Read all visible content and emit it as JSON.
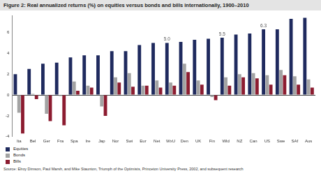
{
  "chart_data": {
    "type": "bar",
    "title": "Figure 2: Real annualized returns (%) on equities versus bonds and bills internationally, 1900–2010",
    "source": "Source: Elroy Dimson, Paul Marsh, and Mike Staunton, Triumph of the Optimists, Princeton University Press, 2002, and subsequent research",
    "categories": [
      "Ita",
      "Bel",
      "Ger",
      "Fra",
      "Spa",
      "Ire",
      "Jap",
      "Nor",
      "Swi",
      "Eur",
      "Net",
      "WxU",
      "Den",
      "UK",
      "Fin",
      "Wld",
      "NZ",
      "Can",
      "US",
      "Swe",
      "SAf",
      "Aus"
    ],
    "series": [
      {
        "name": "Equities",
        "color": "#1f2a5e",
        "values": [
          2.0,
          2.5,
          3.0,
          3.1,
          3.6,
          3.8,
          3.8,
          4.2,
          4.2,
          4.8,
          5.0,
          5.0,
          5.1,
          5.3,
          5.4,
          5.5,
          5.8,
          5.9,
          6.3,
          6.3,
          7.3,
          7.4
        ]
      },
      {
        "name": "Bonds",
        "color": "#a3a3a3",
        "values": [
          -1.7,
          0.1,
          -1.8,
          -0.1,
          1.3,
          0.9,
          -1.1,
          1.7,
          2.1,
          0.9,
          1.4,
          1.2,
          3.0,
          1.4,
          -0.2,
          1.7,
          2.0,
          2.1,
          1.9,
          2.4,
          1.8,
          1.5
        ]
      },
      {
        "name": "Bills",
        "color": "#8c1c30",
        "values": [
          -3.7,
          -0.4,
          -2.5,
          -2.9,
          0.4,
          0.7,
          -2.0,
          1.2,
          0.8,
          0.9,
          0.7,
          0.9,
          2.2,
          1.0,
          -0.5,
          0.9,
          1.7,
          1.6,
          1.0,
          1.9,
          1.0,
          0.7
        ]
      }
    ],
    "annotations": [
      {
        "category": "WxU",
        "value": 5.0,
        "label": "5.0"
      },
      {
        "category": "Wld",
        "value": 5.5,
        "label": "5.5"
      },
      {
        "category": "US",
        "value": 6.3,
        "label": "6.3"
      }
    ],
    "ylim": [
      -4,
      7.6
    ],
    "yticks": [
      -4,
      -2,
      0,
      2,
      4,
      6
    ],
    "grid": false,
    "legend": "bottom-left"
  }
}
